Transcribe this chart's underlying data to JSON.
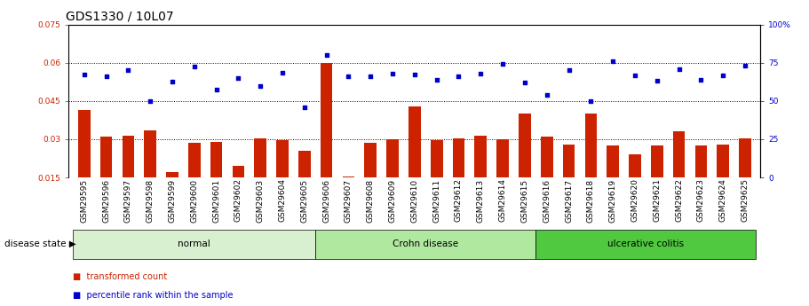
{
  "title": "GDS1330 / 10L07",
  "categories": [
    "GSM29595",
    "GSM29596",
    "GSM29597",
    "GSM29598",
    "GSM29599",
    "GSM29600",
    "GSM29601",
    "GSM29602",
    "GSM29603",
    "GSM29604",
    "GSM29605",
    "GSM29606",
    "GSM29607",
    "GSM29608",
    "GSM29609",
    "GSM29610",
    "GSM29611",
    "GSM29612",
    "GSM29613",
    "GSM29614",
    "GSM29615",
    "GSM29616",
    "GSM29617",
    "GSM29618",
    "GSM29619",
    "GSM29620",
    "GSM29621",
    "GSM29622",
    "GSM29623",
    "GSM29624",
    "GSM29625"
  ],
  "bar_values": [
    0.0415,
    0.031,
    0.0315,
    0.0335,
    0.017,
    0.0285,
    0.029,
    0.0195,
    0.0305,
    0.0295,
    0.0255,
    0.06,
    0.0155,
    0.0285,
    0.03,
    0.043,
    0.0295,
    0.0305,
    0.0315,
    0.03,
    0.04,
    0.031,
    0.028,
    0.04,
    0.0275,
    0.024,
    0.0275,
    0.033,
    0.0275,
    0.028,
    0.0305
  ],
  "scatter_values": [
    67.5,
    66.0,
    70.0,
    50.0,
    62.5,
    72.5,
    57.5,
    65.0,
    60.0,
    68.5,
    46.0,
    80.0,
    66.0,
    66.0,
    68.0,
    67.5,
    64.0,
    66.0,
    68.0,
    74.0,
    62.0,
    54.0,
    70.0,
    50.0,
    76.0,
    67.0,
    63.0,
    70.5,
    64.0,
    67.0,
    73.0
  ],
  "groups": [
    {
      "label": "normal",
      "start": 0,
      "end": 10,
      "color": "#d8f0d0"
    },
    {
      "label": "Crohn disease",
      "start": 11,
      "end": 20,
      "color": "#b0e8a0"
    },
    {
      "label": "ulcerative colitis",
      "start": 21,
      "end": 30,
      "color": "#50c840"
    }
  ],
  "ylim_left": [
    0.015,
    0.075
  ],
  "ylim_right": [
    0,
    100
  ],
  "yticks_left": [
    0.015,
    0.03,
    0.045,
    0.06,
    0.075
  ],
  "yticks_right": [
    0,
    25,
    50,
    75,
    100
  ],
  "bar_color": "#cc2200",
  "scatter_color": "#0000cc",
  "background_color": "#ffffff",
  "grid_color": "#000000",
  "title_fontsize": 10,
  "tick_fontsize": 6.5,
  "legend_label_bar": "transformed count",
  "legend_label_scatter": "percentile rank within the sample",
  "disease_state_label": "disease state"
}
